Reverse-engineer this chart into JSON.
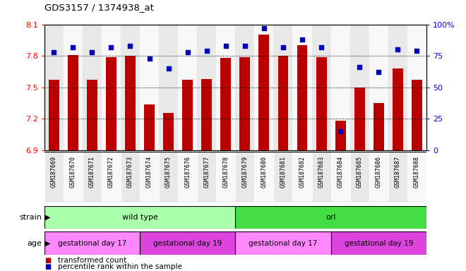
{
  "title": "GDS3157 / 1374938_at",
  "samples": [
    "GSM187669",
    "GSM187670",
    "GSM187671",
    "GSM187672",
    "GSM187673",
    "GSM187674",
    "GSM187675",
    "GSM187676",
    "GSM187677",
    "GSM187678",
    "GSM187679",
    "GSM187680",
    "GSM187681",
    "GSM187682",
    "GSM187683",
    "GSM187684",
    "GSM187685",
    "GSM187686",
    "GSM187687",
    "GSM187688"
  ],
  "transformed_count": [
    7.57,
    7.81,
    7.57,
    7.79,
    7.8,
    7.34,
    7.26,
    7.57,
    7.58,
    7.78,
    7.79,
    8.0,
    7.8,
    7.9,
    7.79,
    7.18,
    7.5,
    7.35,
    7.68,
    7.57
  ],
  "percentile_rank": [
    78,
    82,
    78,
    82,
    83,
    73,
    65,
    78,
    79,
    83,
    83,
    97,
    82,
    88,
    82,
    15,
    66,
    62,
    80,
    79
  ],
  "bar_color": "#bb0000",
  "dot_color": "#0000bb",
  "ylim_left": [
    6.9,
    8.1
  ],
  "ylim_right": [
    0,
    100
  ],
  "yticks_left": [
    6.9,
    7.2,
    7.5,
    7.8,
    8.1
  ],
  "yticks_right": [
    0,
    25,
    50,
    75,
    100
  ],
  "hlines": [
    7.8,
    7.5,
    7.2
  ],
  "strain_groups": [
    {
      "label": "wild type",
      "start": 0,
      "end": 10,
      "color": "#aaffaa"
    },
    {
      "label": "orl",
      "start": 10,
      "end": 20,
      "color": "#44dd44"
    }
  ],
  "age_groups": [
    {
      "label": "gestational day 17",
      "start": 0,
      "end": 5,
      "color": "#ff88ff"
    },
    {
      "label": "gestational day 19",
      "start": 5,
      "end": 10,
      "color": "#dd44dd"
    },
    {
      "label": "gestational day 17",
      "start": 10,
      "end": 15,
      "color": "#ff88ff"
    },
    {
      "label": "gestational day 19",
      "start": 15,
      "end": 20,
      "color": "#dd44dd"
    }
  ],
  "legend_items": [
    {
      "label": "transformed count",
      "color": "#bb0000"
    },
    {
      "label": "percentile rank within the sample",
      "color": "#0000bb"
    }
  ],
  "background_color": "#ffffff",
  "plot_bg_color": "#ffffff",
  "col_bg_even": "#e8e8e8",
  "col_bg_odd": "#f8f8f8"
}
